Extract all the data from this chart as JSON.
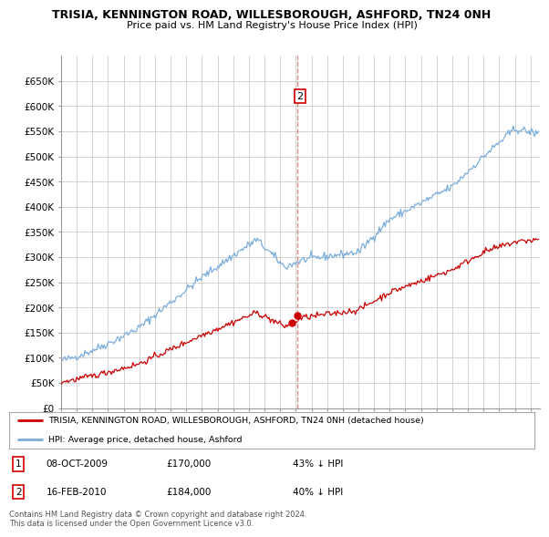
{
  "title": "TRISIA, KENNINGTON ROAD, WILLESBOROUGH, ASHFORD, TN24 0NH",
  "subtitle": "Price paid vs. HM Land Registry's House Price Index (HPI)",
  "hpi_color": "#7aaddc",
  "price_color": "#cc0000",
  "background_color": "#ffffff",
  "grid_color": "#cccccc",
  "ylim": [
    0,
    700000
  ],
  "yticks": [
    0,
    50000,
    100000,
    150000,
    200000,
    250000,
    300000,
    350000,
    400000,
    450000,
    500000,
    550000,
    600000,
    650000
  ],
  "ytick_labels": [
    "£0",
    "£50K",
    "£100K",
    "£150K",
    "£200K",
    "£250K",
    "£300K",
    "£350K",
    "£400K",
    "£450K",
    "£500K",
    "£550K",
    "£600K",
    "£650K"
  ],
  "year_start": 1995,
  "year_end": 2025,
  "transactions": [
    {
      "label": "1",
      "date": "08-OCT-2009",
      "price": 170000,
      "price_str": "£170,000",
      "pct": "43% ↓ HPI",
      "year_num": 2009.77,
      "show_in_chart": false
    },
    {
      "label": "2",
      "date": "16-FEB-2010",
      "price": 184000,
      "price_str": "£184,000",
      "pct": "40% ↓ HPI",
      "year_num": 2010.12,
      "show_in_chart": true
    }
  ],
  "vline_year": 2010.12,
  "vline_color": "#dd8888",
  "legend_entries": [
    "TRISIA, KENNINGTON ROAD, WILLESBOROUGH, ASHFORD, TN24 0NH (detached house)",
    "HPI: Average price, detached house, Ashford"
  ],
  "footer": "Contains HM Land Registry data © Crown copyright and database right 2024.\nThis data is licensed under the Open Government Licence v3.0."
}
